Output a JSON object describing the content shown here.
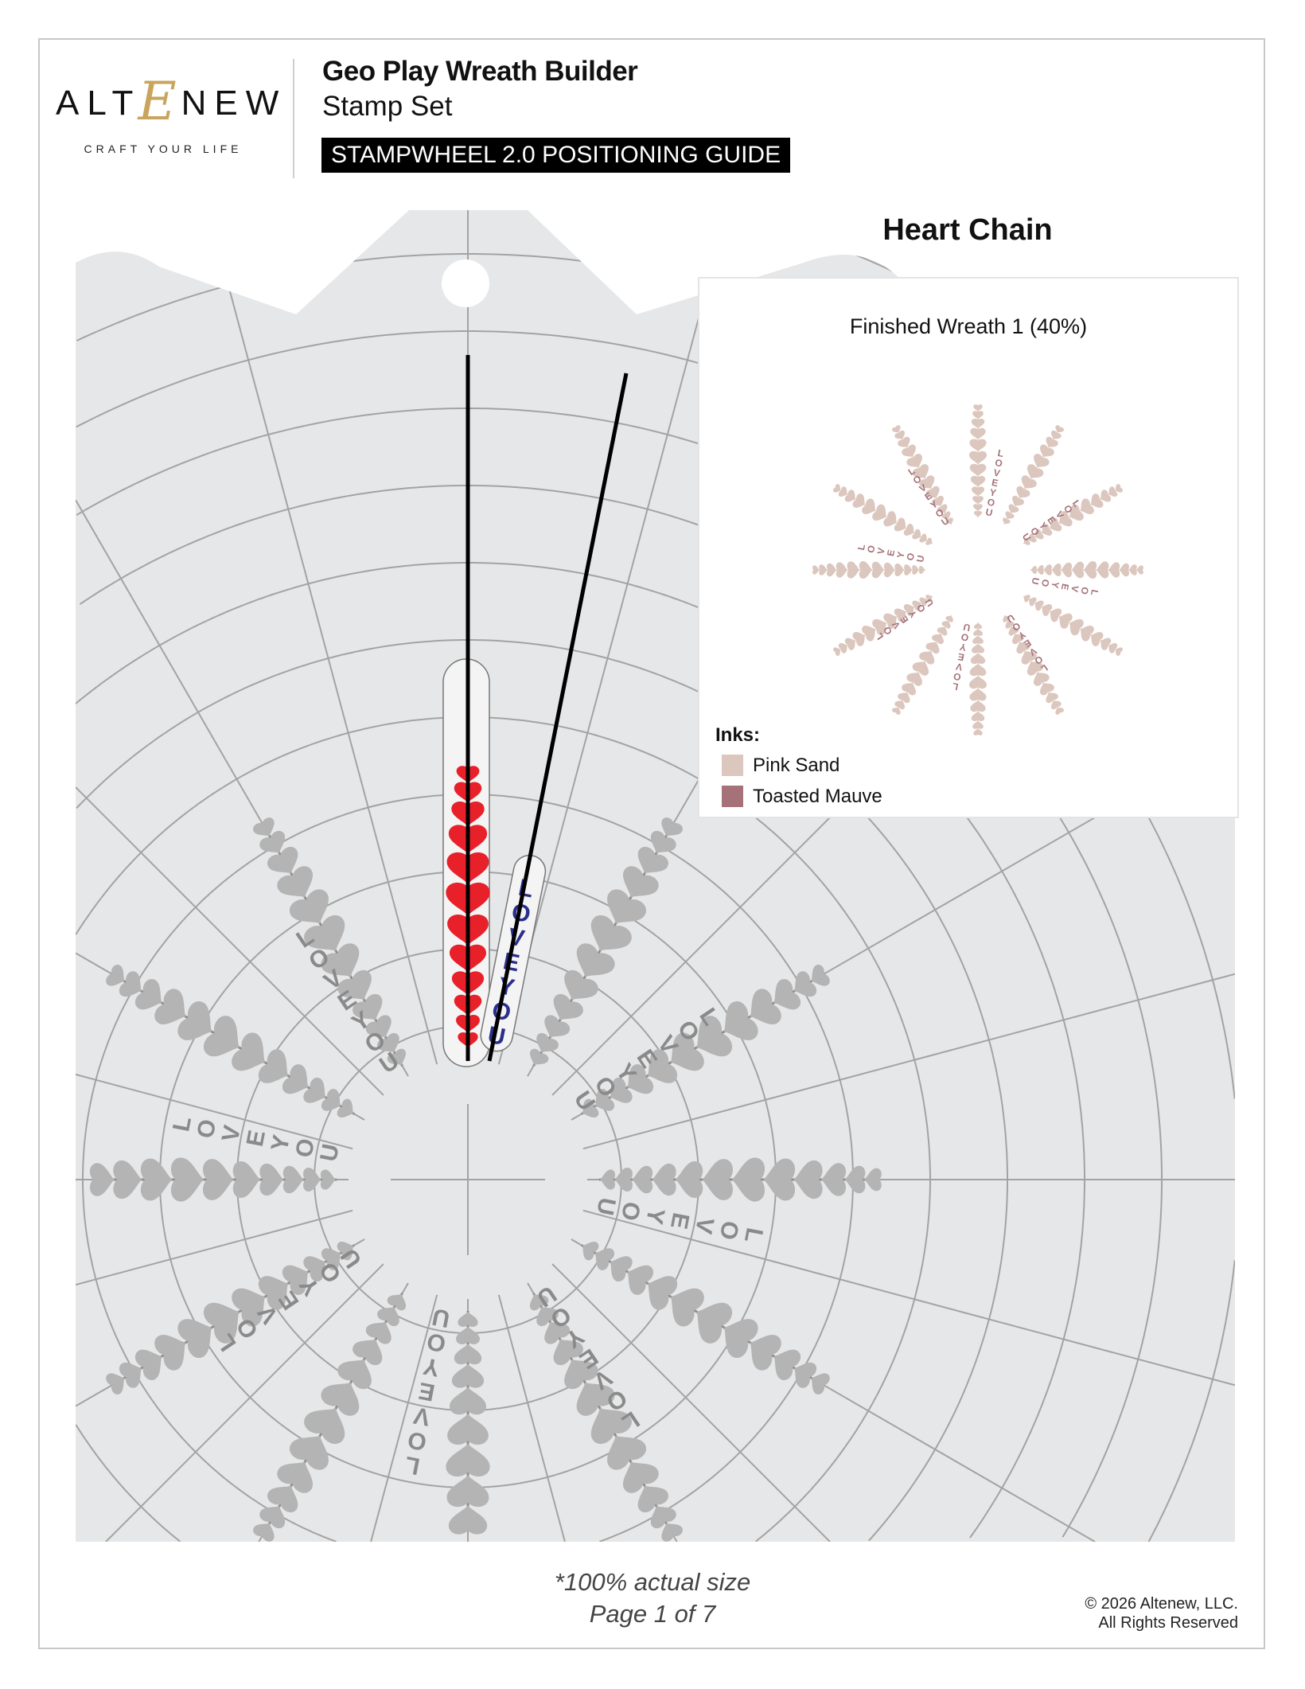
{
  "logo": {
    "brand": "ALTENEW",
    "brand_left": "ALT",
    "brand_mark": "E",
    "brand_right": "NEW",
    "tagline": "CRAFT YOUR LIFE"
  },
  "header": {
    "title": "Geo Play Wreath Builder",
    "subtitle": "Stamp Set",
    "badge": "STAMPWHEEL 2.0 POSITIONING GUIDE"
  },
  "section_title": "Heart Chain",
  "stamp_text": "LOVE YOU",
  "colors": {
    "wheel_bg": "#e6e7e8",
    "grid_line": "#a3a3a3",
    "guide_heart": "#b4b4b4",
    "active_heart": "#e8202a",
    "active_text": "#2b2e8c",
    "guide_line": "#000000"
  },
  "inset": {
    "title": "Finished Wreath 1 (40%)",
    "inks_label": "Inks:",
    "inks": [
      {
        "name": "Pink Sand",
        "color": "#dcc7bf"
      },
      {
        "name": "Toasted Mauve",
        "color": "#a5727a"
      }
    ]
  },
  "footer": {
    "note": "*100% actual size",
    "page": "Page 1 of 7",
    "copyright": "© 2026 Altenew, LLC.",
    "rights": "All Rights Reserved"
  }
}
